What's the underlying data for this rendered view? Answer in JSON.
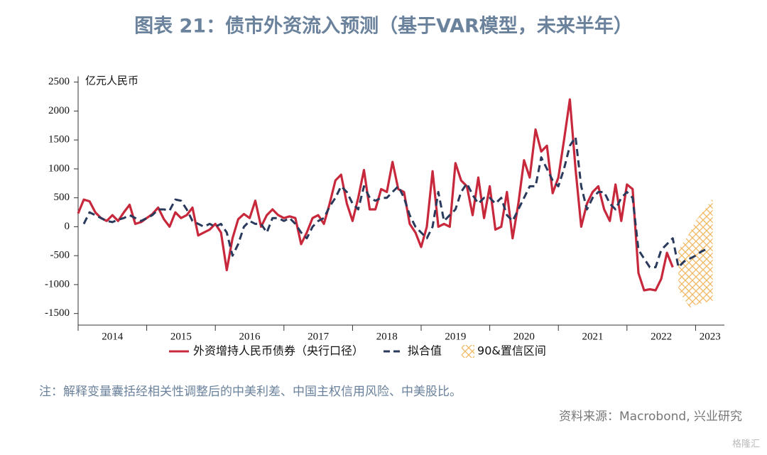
{
  "chart_data": {
    "type": "line",
    "title": "图表 21：债市外资流入预测（基于VAR模型，未来半年）",
    "y_label": "亿元人民币",
    "note": "注：解释变量囊括经相关性调整后的中美利差、中国主权信用风险、中美股比。",
    "source": "资料来源：Macrobond, 兴业研究",
    "watermark": "格隆汇",
    "categories": [
      "2014",
      "2015",
      "2016",
      "2017",
      "2018",
      "2019",
      "2020",
      "2021",
      "2022",
      "2023"
    ],
    "xticks": [
      2014,
      2015,
      2016,
      2017,
      2018,
      2019,
      2020,
      2021,
      2022,
      2023
    ],
    "xlim": [
      2014,
      2023.42
    ],
    "ylim": [
      -1700,
      2600
    ],
    "yticks": [
      -1500,
      -1000,
      -500,
      0,
      500,
      1000,
      1500,
      2000,
      2500
    ],
    "grid": false,
    "x": [
      2014,
      2014.083,
      2014.167,
      2014.25,
      2014.333,
      2014.417,
      2014.5,
      2014.583,
      2014.667,
      2014.75,
      2014.833,
      2014.917,
      2015,
      2015.083,
      2015.167,
      2015.25,
      2015.333,
      2015.417,
      2015.5,
      2015.583,
      2015.667,
      2015.75,
      2015.833,
      2015.917,
      2016,
      2016.083,
      2016.167,
      2016.25,
      2016.333,
      2016.417,
      2016.5,
      2016.583,
      2016.667,
      2016.75,
      2016.833,
      2016.917,
      2017,
      2017.083,
      2017.167,
      2017.25,
      2017.333,
      2017.417,
      2017.5,
      2017.583,
      2017.667,
      2017.75,
      2017.833,
      2017.917,
      2018,
      2018.083,
      2018.167,
      2018.25,
      2018.333,
      2018.417,
      2018.5,
      2018.583,
      2018.667,
      2018.75,
      2018.833,
      2018.917,
      2019,
      2019.083,
      2019.167,
      2019.25,
      2019.333,
      2019.417,
      2019.5,
      2019.583,
      2019.667,
      2019.75,
      2019.833,
      2019.917,
      2020,
      2020.083,
      2020.167,
      2020.25,
      2020.333,
      2020.417,
      2020.5,
      2020.583,
      2020.667,
      2020.75,
      2020.833,
      2020.917,
      2021,
      2021.083,
      2021.167,
      2021.25,
      2021.333,
      2021.417,
      2021.5,
      2021.583,
      2021.667,
      2021.75,
      2021.833,
      2021.917,
      2022,
      2022.083,
      2022.167,
      2022.25,
      2022.333,
      2022.417,
      2022.5,
      2022.583,
      2022.667,
      2022.75,
      2022.833,
      2022.917,
      2023,
      2023.083,
      2023.167
    ],
    "series": [
      {
        "name": "外资增持人民币债券（央行口径）",
        "color": "#c8283c",
        "dash": false,
        "values": [
          230,
          470,
          440,
          250,
          150,
          100,
          200,
          100,
          250,
          380,
          50,
          80,
          150,
          220,
          330,
          130,
          0,
          250,
          150,
          200,
          330,
          -150,
          -100,
          -50,
          50,
          -100,
          -750,
          -200,
          130,
          220,
          150,
          450,
          0,
          200,
          300,
          200,
          150,
          180,
          150,
          -300,
          -100,
          150,
          200,
          50,
          400,
          800,
          900,
          400,
          100,
          500,
          980,
          300,
          300,
          650,
          600,
          1120,
          650,
          600,
          50,
          -100,
          -350,
          0,
          960,
          0,
          50,
          0,
          1100,
          800,
          700,
          200,
          850,
          150,
          700,
          -50,
          0,
          600,
          -200,
          400,
          1150,
          850,
          1680,
          1300,
          1400,
          580,
          850,
          1500,
          2200,
          1000,
          0,
          400,
          600,
          700,
          300,
          100,
          730,
          100,
          730,
          650,
          -800,
          -1100,
          -1080,
          -1100,
          -900,
          -450,
          -700,
          null,
          null,
          null,
          null,
          null,
          null
        ]
      },
      {
        "name": "拟合值",
        "color": "#2a3a5c",
        "dash": true,
        "values": [
          null,
          50,
          250,
          200,
          150,
          100,
          80,
          120,
          150,
          200,
          150,
          100,
          150,
          200,
          300,
          300,
          280,
          470,
          450,
          300,
          100,
          50,
          0,
          50,
          0,
          50,
          -100,
          -500,
          -300,
          0,
          100,
          50,
          50,
          -100,
          150,
          150,
          100,
          150,
          50,
          -100,
          -200,
          0,
          100,
          150,
          350,
          500,
          700,
          600,
          400,
          300,
          700,
          500,
          450,
          500,
          500,
          600,
          700,
          500,
          200,
          0,
          -100,
          -200,
          0,
          600,
          100,
          200,
          300,
          600,
          750,
          550,
          400,
          500,
          500,
          400,
          500,
          200,
          100,
          300,
          500,
          700,
          700,
          1200,
          1000,
          800,
          700,
          1000,
          1400,
          1550,
          700,
          300,
          500,
          600,
          600,
          400,
          300,
          500,
          600,
          500,
          -400,
          -550,
          -700,
          -700,
          -400,
          -300,
          -200,
          -700,
          -600,
          -550,
          -500,
          -430,
          -380
        ]
      }
    ],
    "band": {
      "name": "90&置信区间",
      "color": "#f0b860",
      "x": [
        2022.75,
        2022.917,
        2023,
        2023.167,
        2023.25
      ],
      "upper": [
        -400,
        -100,
        100,
        350,
        500
      ],
      "lower": [
        -1100,
        -1400,
        -1350,
        -1300,
        -1300
      ]
    }
  }
}
